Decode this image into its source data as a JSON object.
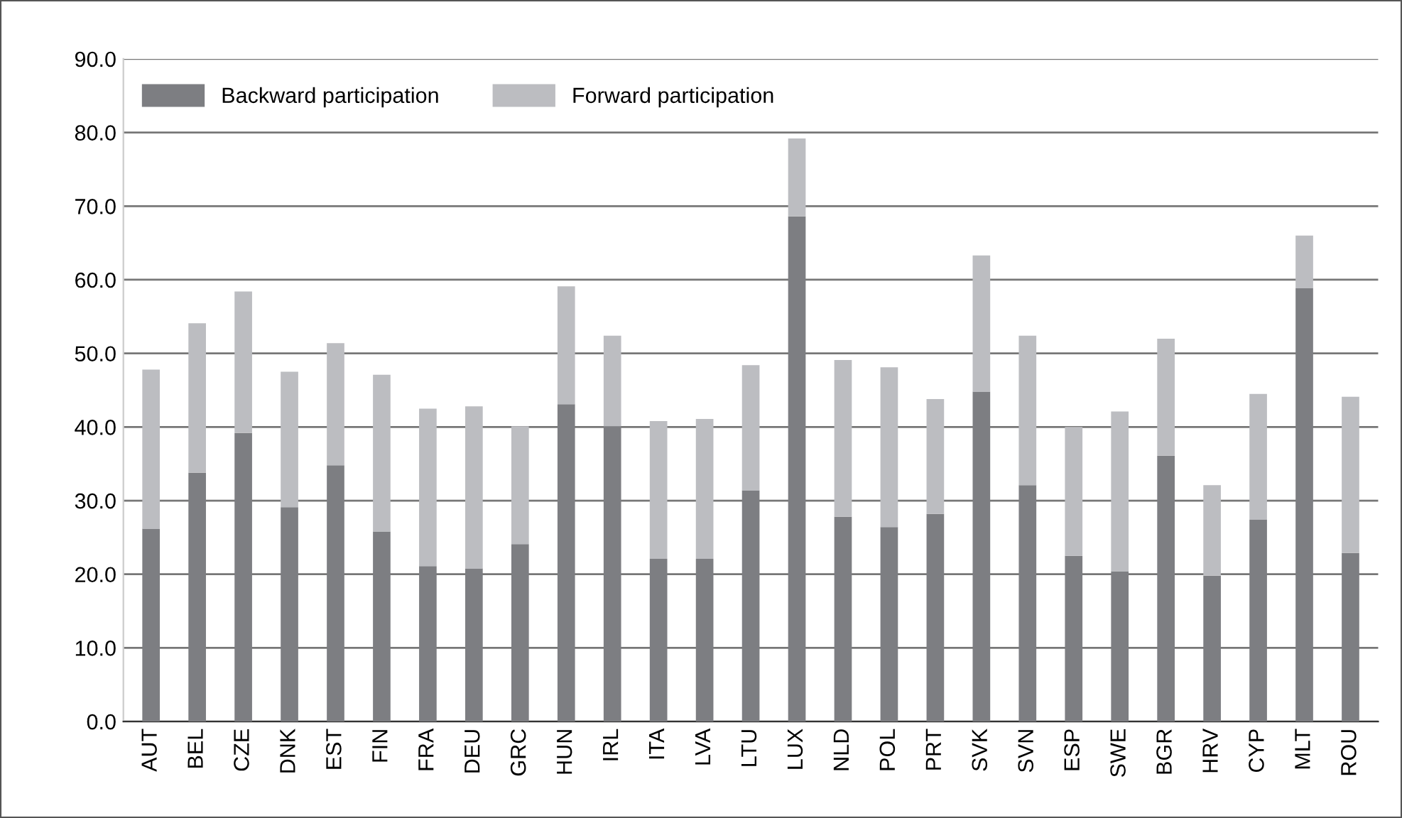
{
  "chart_data": {
    "type": "bar",
    "stacked": true,
    "categories": [
      "AUT",
      "BEL",
      "CZE",
      "DNK",
      "EST",
      "FIN",
      "FRA",
      "DEU",
      "GRC",
      "HUN",
      "IRL",
      "ITA",
      "LVA",
      "LTU",
      "LUX",
      "NLD",
      "POL",
      "PRT",
      "SVK",
      "SVN",
      "ESP",
      "SWE",
      "BGR",
      "HRV",
      "CYP",
      "MLT",
      "ROU"
    ],
    "series": [
      {
        "name": "Backward participation",
        "color": "#7d7e82",
        "values": [
          26.2,
          33.8,
          39.2,
          29.1,
          34.8,
          25.8,
          21.1,
          20.8,
          24.1,
          43.1,
          40.1,
          22.1,
          22.1,
          31.4,
          68.6,
          27.8,
          26.4,
          28.2,
          44.8,
          32.1,
          22.5,
          20.4,
          36.1,
          19.8,
          27.4,
          58.9,
          22.9
        ]
      },
      {
        "name": "Forward participation",
        "color": "#bcbdc1",
        "values": [
          21.6,
          20.3,
          19.2,
          18.4,
          16.6,
          21.3,
          21.4,
          22.0,
          16.0,
          16.0,
          12.3,
          18.7,
          19.0,
          17.0,
          10.6,
          21.3,
          21.7,
          15.6,
          18.5,
          20.3,
          17.5,
          21.7,
          15.9,
          12.3,
          17.1,
          7.1,
          21.2
        ]
      }
    ],
    "ylim": [
      0,
      90
    ],
    "yticks": [
      {
        "value": 0,
        "label": "0.0"
      },
      {
        "value": 10,
        "label": "10.0"
      },
      {
        "value": 20,
        "label": "20.0"
      },
      {
        "value": 30,
        "label": "30.0"
      },
      {
        "value": 40,
        "label": "40.0"
      },
      {
        "value": 50,
        "label": "50.0"
      },
      {
        "value": 60,
        "label": "60.0"
      },
      {
        "value": 70,
        "label": "70.0"
      },
      {
        "value": 80,
        "label": "80.0"
      },
      {
        "value": 90,
        "label": "90.0"
      }
    ],
    "grid": "y",
    "legend": "top left"
  }
}
